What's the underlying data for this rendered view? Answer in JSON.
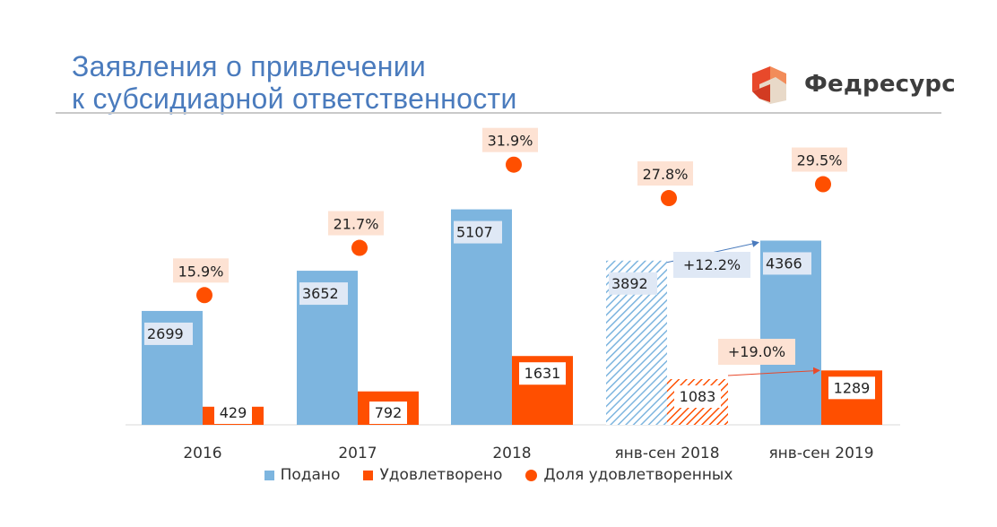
{
  "header": {
    "title_line1": "Заявления о привлечении",
    "title_line2": "к субсидиарной ответственности",
    "logo_text": "Федресурс"
  },
  "colors": {
    "filed": "#7db5df",
    "satisfied": "#ff4f00",
    "share_label_bg": "#fde2d3",
    "value_label_bg": "#dfe8f5"
  },
  "chart_data": {
    "type": "bar",
    "title": "Заявления о привлечении к субсидиарной ответственности",
    "categories": [
      "2016",
      "2017",
      "2018",
      "янв-сен 2018",
      "янв-сен 2019"
    ],
    "series": [
      {
        "name": "Подано",
        "values": [
          2699,
          3652,
          5107,
          3892,
          4366
        ],
        "labels": [
          "2699",
          "3652",
          "5107",
          "3892",
          "4366"
        ]
      },
      {
        "name": "Удовлетворено",
        "values": [
          429,
          792,
          1631,
          1083,
          1289
        ],
        "labels": [
          "429",
          "792",
          "1631",
          "1083",
          "1289"
        ]
      },
      {
        "name": "Доля удовлетворенных",
        "values": [
          15.9,
          21.7,
          31.9,
          27.8,
          29.5
        ],
        "labels": [
          "15.9%",
          "21.7%",
          "31.9%",
          "27.8%",
          "29.5%"
        ]
      }
    ],
    "hatched_category": "янв-сен 2018",
    "annotations": [
      {
        "text": "+12.2%",
        "from": "янв-сен 2018",
        "to": "янв-сен 2019",
        "series": "Подано"
      },
      {
        "text": "+19.0%",
        "from": "янв-сен 2018",
        "to": "янв-сен 2019",
        "series": "Удовлетворено"
      }
    ],
    "ylim_bars": [
      0,
      6500
    ],
    "ylim_share": [
      0,
      40
    ],
    "legend": [
      "Подано",
      "Удовлетворено",
      "Доля удовлетворенных"
    ],
    "legend_position": "bottom"
  }
}
